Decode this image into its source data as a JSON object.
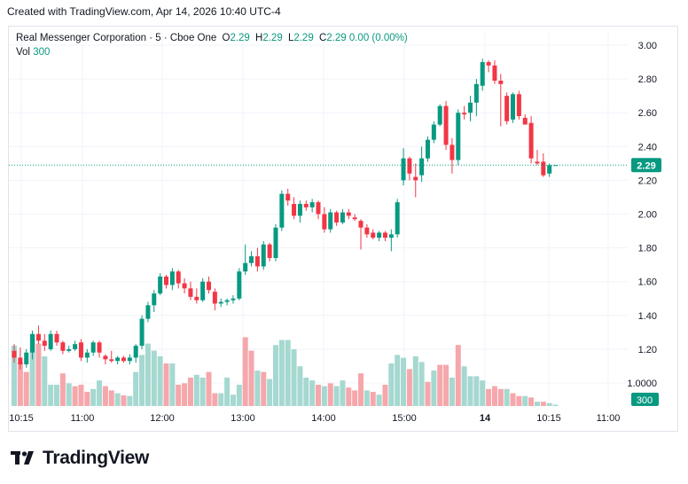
{
  "header": {
    "created": "Created with TradingView.com, Apr 14, 2026 10:40 UTC-4"
  },
  "legend": {
    "symbol": "Real Messenger Corporation · 5 · Cboe One",
    "o_label": "O",
    "o_value": "2.29",
    "h_label": "H",
    "h_value": "2.29",
    "l_label": "L",
    "l_value": "2.29",
    "c_label": "C",
    "c_value": "2.29",
    "change": "0.00 (0.00%)",
    "vol_label": "Vol",
    "vol_value": "300"
  },
  "badges": {
    "price": "2.29",
    "volume": "300"
  },
  "footer": {
    "logo_text": "TradingView"
  },
  "colors": {
    "up": "#089981",
    "down": "#f23645",
    "vol_up": "#a5d8d0",
    "vol_down": "#f5a7ab",
    "grid": "#f0f3fa",
    "text": "#131722"
  },
  "chart_data": {
    "type": "candlestick",
    "y_ticks": [
      "3.00",
      "2.80",
      "2.60",
      "2.40",
      "2.20",
      "2.00",
      "1.80",
      "1.60",
      "1.40",
      "1.20",
      "1.0000"
    ],
    "x_ticks": [
      "10:15",
      "11:00",
      "12:00",
      "13:00",
      "14:00",
      "15:00",
      "14",
      "10:15",
      "11:00"
    ],
    "ylim": [
      0.95,
      3.05
    ],
    "last_price": 2.29,
    "grid": true,
    "candles": [
      [
        1.19,
        1.23,
        1.12,
        1.15
      ],
      [
        1.15,
        1.21,
        1.08,
        1.11
      ],
      [
        1.11,
        1.2,
        1.09,
        1.18
      ],
      [
        1.18,
        1.31,
        1.14,
        1.29
      ],
      [
        1.29,
        1.34,
        1.23,
        1.25
      ],
      [
        1.25,
        1.29,
        1.19,
        1.22
      ],
      [
        1.2,
        1.31,
        1.19,
        1.29
      ],
      [
        1.29,
        1.31,
        1.22,
        1.24
      ],
      [
        1.24,
        1.25,
        1.17,
        1.19
      ],
      [
        1.19,
        1.22,
        1.18,
        1.2
      ],
      [
        1.2,
        1.25,
        1.19,
        1.23
      ],
      [
        1.24,
        1.26,
        1.13,
        1.15
      ],
      [
        1.15,
        1.2,
        1.12,
        1.18
      ],
      [
        1.18,
        1.25,
        1.16,
        1.24
      ],
      [
        1.24,
        1.25,
        1.15,
        1.18
      ],
      [
        1.16,
        1.17,
        1.11,
        1.14
      ],
      [
        1.14,
        1.19,
        1.12,
        1.13
      ],
      [
        1.13,
        1.16,
        1.11,
        1.15
      ],
      [
        1.15,
        1.16,
        1.12,
        1.13
      ],
      [
        1.13,
        1.17,
        1.11,
        1.15
      ],
      [
        1.15,
        1.23,
        1.12,
        1.22
      ],
      [
        1.22,
        1.4,
        1.2,
        1.38
      ],
      [
        1.38,
        1.48,
        1.36,
        1.46
      ],
      [
        1.46,
        1.55,
        1.42,
        1.53
      ],
      [
        1.53,
        1.65,
        1.52,
        1.63
      ],
      [
        1.63,
        1.64,
        1.56,
        1.58
      ],
      [
        1.58,
        1.68,
        1.55,
        1.66
      ],
      [
        1.66,
        1.67,
        1.56,
        1.59
      ],
      [
        1.59,
        1.62,
        1.53,
        1.56
      ],
      [
        1.56,
        1.6,
        1.49,
        1.51
      ],
      [
        1.51,
        1.56,
        1.47,
        1.49
      ],
      [
        1.49,
        1.62,
        1.48,
        1.6
      ],
      [
        1.6,
        1.63,
        1.53,
        1.55
      ],
      [
        1.54,
        1.56,
        1.43,
        1.47
      ],
      [
        1.47,
        1.5,
        1.45,
        1.48
      ],
      [
        1.48,
        1.5,
        1.46,
        1.49
      ],
      [
        1.49,
        1.52,
        1.47,
        1.5
      ],
      [
        1.5,
        1.68,
        1.49,
        1.66
      ],
      [
        1.66,
        1.82,
        1.64,
        1.71
      ],
      [
        1.71,
        1.78,
        1.69,
        1.75
      ],
      [
        1.75,
        1.8,
        1.66,
        1.69
      ],
      [
        1.69,
        1.84,
        1.67,
        1.82
      ],
      [
        1.82,
        1.83,
        1.72,
        1.74
      ],
      [
        1.74,
        1.94,
        1.72,
        1.92
      ],
      [
        1.92,
        2.14,
        1.9,
        2.12
      ],
      [
        2.12,
        2.15,
        2.05,
        2.08
      ],
      [
        2.06,
        2.1,
        1.97,
        1.99
      ],
      [
        1.99,
        2.08,
        1.95,
        2.06
      ],
      [
        2.06,
        2.08,
        2.02,
        2.04
      ],
      [
        2.04,
        2.09,
        2.01,
        2.07
      ],
      [
        2.07,
        2.08,
        1.97,
        2.0
      ],
      [
        2.0,
        2.04,
        1.89,
        1.91
      ],
      [
        1.91,
        2.03,
        1.89,
        2.01
      ],
      [
        2.01,
        2.02,
        1.93,
        1.95
      ],
      [
        1.95,
        2.03,
        1.94,
        2.01
      ],
      [
        2.01,
        2.03,
        1.97,
        1.99
      ],
      [
        1.98,
        2.0,
        1.96,
        1.97
      ],
      [
        1.96,
        1.97,
        1.79,
        1.92
      ],
      [
        1.92,
        1.94,
        1.86,
        1.88
      ],
      [
        1.89,
        1.91,
        1.85,
        1.86
      ],
      [
        1.86,
        1.9,
        1.84,
        1.89
      ],
      [
        1.89,
        1.9,
        1.84,
        1.86
      ],
      [
        1.86,
        1.91,
        1.78,
        1.88
      ],
      [
        1.88,
        2.09,
        1.86,
        2.07
      ],
      [
        2.2,
        2.39,
        2.17,
        2.33
      ],
      [
        2.33,
        2.34,
        2.2,
        2.24
      ],
      [
        2.22,
        2.3,
        2.1,
        2.2
      ],
      [
        2.23,
        2.4,
        2.19,
        2.33
      ],
      [
        2.33,
        2.46,
        2.31,
        2.44
      ],
      [
        2.44,
        2.55,
        2.42,
        2.53
      ],
      [
        2.53,
        2.65,
        2.52,
        2.64
      ],
      [
        2.64,
        2.67,
        2.38,
        2.41
      ],
      [
        2.41,
        2.45,
        2.24,
        2.32
      ],
      [
        2.32,
        2.62,
        2.29,
        2.6
      ],
      [
        2.6,
        2.64,
        2.56,
        2.59
      ],
      [
        2.6,
        2.7,
        2.55,
        2.66
      ],
      [
        2.66,
        2.8,
        2.58,
        2.77
      ],
      [
        2.76,
        2.92,
        2.73,
        2.9
      ],
      [
        2.9,
        2.91,
        2.84,
        2.88
      ],
      [
        2.88,
        2.91,
        2.77,
        2.79
      ],
      [
        2.79,
        2.83,
        2.52,
        2.77
      ],
      [
        2.7,
        2.72,
        2.53,
        2.55
      ],
      [
        2.56,
        2.72,
        2.54,
        2.71
      ],
      [
        2.71,
        2.73,
        2.56,
        2.58
      ],
      [
        2.57,
        2.59,
        2.53,
        2.53
      ],
      [
        2.54,
        2.58,
        2.3,
        2.33
      ],
      [
        2.31,
        2.38,
        2.29,
        2.3
      ],
      [
        2.31,
        2.36,
        2.22,
        2.23
      ],
      [
        2.24,
        2.3,
        2.22,
        2.29
      ],
      [
        2.29,
        2.29,
        2.29,
        2.29
      ]
    ],
    "volumes": [
      [
        0.85,
        1
      ],
      [
        0.62,
        0
      ],
      [
        0.48,
        0
      ],
      [
        1.0,
        1
      ],
      [
        0.88,
        0
      ],
      [
        0.7,
        1
      ],
      [
        0.3,
        1
      ],
      [
        0.3,
        1
      ],
      [
        0.46,
        0
      ],
      [
        0.32,
        1
      ],
      [
        0.28,
        0
      ],
      [
        0.3,
        0
      ],
      [
        0.2,
        0
      ],
      [
        0.24,
        1
      ],
      [
        0.36,
        1
      ],
      [
        0.28,
        0
      ],
      [
        0.22,
        0
      ],
      [
        0.18,
        1
      ],
      [
        0.15,
        0
      ],
      [
        0.14,
        1
      ],
      [
        0.48,
        1
      ],
      [
        0.72,
        1
      ],
      [
        0.88,
        1
      ],
      [
        0.78,
        1
      ],
      [
        0.7,
        1
      ],
      [
        0.6,
        0
      ],
      [
        0.6,
        1
      ],
      [
        0.3,
        0
      ],
      [
        0.32,
        0
      ],
      [
        0.4,
        0
      ],
      [
        0.44,
        1
      ],
      [
        0.4,
        1
      ],
      [
        0.48,
        0
      ],
      [
        0.18,
        0
      ],
      [
        0.18,
        1
      ],
      [
        0.4,
        1
      ],
      [
        0.16,
        1
      ],
      [
        0.3,
        1
      ],
      [
        0.97,
        0
      ],
      [
        0.78,
        0
      ],
      [
        0.5,
        1
      ],
      [
        0.48,
        0
      ],
      [
        0.38,
        1
      ],
      [
        0.86,
        1
      ],
      [
        0.93,
        1
      ],
      [
        0.93,
        1
      ],
      [
        0.8,
        1
      ],
      [
        0.56,
        1
      ],
      [
        0.4,
        1
      ],
      [
        0.36,
        1
      ],
      [
        0.3,
        0
      ],
      [
        0.28,
        1
      ],
      [
        0.32,
        0
      ],
      [
        0.28,
        1
      ],
      [
        0.36,
        1
      ],
      [
        0.26,
        0
      ],
      [
        0.22,
        0
      ],
      [
        0.46,
        0
      ],
      [
        0.22,
        1
      ],
      [
        0.2,
        0
      ],
      [
        0.16,
        1
      ],
      [
        0.3,
        0
      ],
      [
        0.6,
        1
      ],
      [
        0.72,
        1
      ],
      [
        0.68,
        1
      ],
      [
        0.52,
        0
      ],
      [
        0.7,
        1
      ],
      [
        0.62,
        1
      ],
      [
        0.34,
        0
      ],
      [
        0.5,
        1
      ],
      [
        0.58,
        0
      ],
      [
        0.58,
        0
      ],
      [
        0.4,
        1
      ],
      [
        0.86,
        0
      ],
      [
        0.56,
        1
      ],
      [
        0.42,
        1
      ],
      [
        0.42,
        1
      ],
      [
        0.36,
        1
      ],
      [
        0.24,
        0
      ],
      [
        0.28,
        0
      ],
      [
        0.24,
        0
      ],
      [
        0.24,
        1
      ],
      [
        0.18,
        0
      ],
      [
        0.14,
        0
      ],
      [
        0.14,
        1
      ],
      [
        0.12,
        0
      ],
      [
        0.06,
        1
      ],
      [
        0.06,
        0
      ],
      [
        0.04,
        1
      ],
      [
        0.02,
        1
      ]
    ]
  }
}
